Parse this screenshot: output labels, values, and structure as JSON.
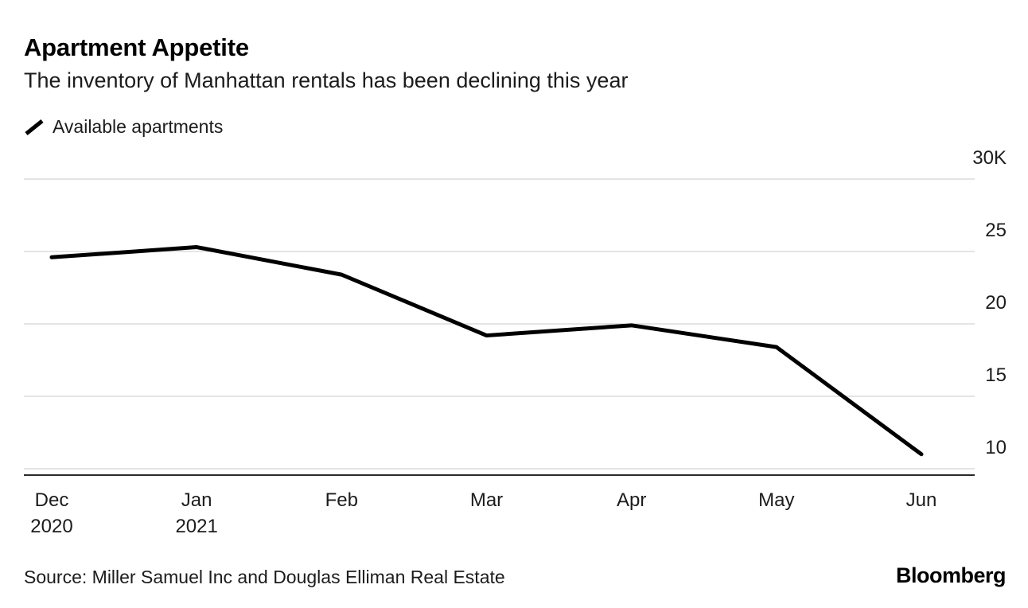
{
  "header": {
    "title": "Apartment Appetite",
    "subtitle": "The inventory of Manhattan rentals has been declining this year"
  },
  "legend": {
    "label": "Available apartments",
    "color": "#000000"
  },
  "chart_data": {
    "type": "line",
    "title": "Apartment Appetite",
    "subtitle": "The inventory of Manhattan rentals has been declining this year",
    "categories": [
      "Dec",
      "Jan",
      "Feb",
      "Mar",
      "Apr",
      "May",
      "Jun"
    ],
    "category_sublabels": [
      "2020",
      "2021",
      "",
      "",
      "",
      "",
      ""
    ],
    "series": [
      {
        "name": "Available apartments",
        "color": "#000000",
        "values": [
          24.6,
          25.3,
          23.4,
          19.2,
          19.9,
          18.4,
          11.0
        ]
      }
    ],
    "unit": "K",
    "yticks": [
      10,
      15,
      20,
      25,
      30
    ],
    "ytick_labels": [
      "10",
      "15",
      "20",
      "25",
      "30K"
    ],
    "ylim": [
      8.5,
      31
    ],
    "grid": "horizontal",
    "grid_color": "#dcdcdc",
    "axis_color": "#2a2a2a",
    "legend_position": "top-left"
  },
  "source": "Source: Miller Samuel Inc and Douglas Elliman Real Estate",
  "brand": "Bloomberg"
}
